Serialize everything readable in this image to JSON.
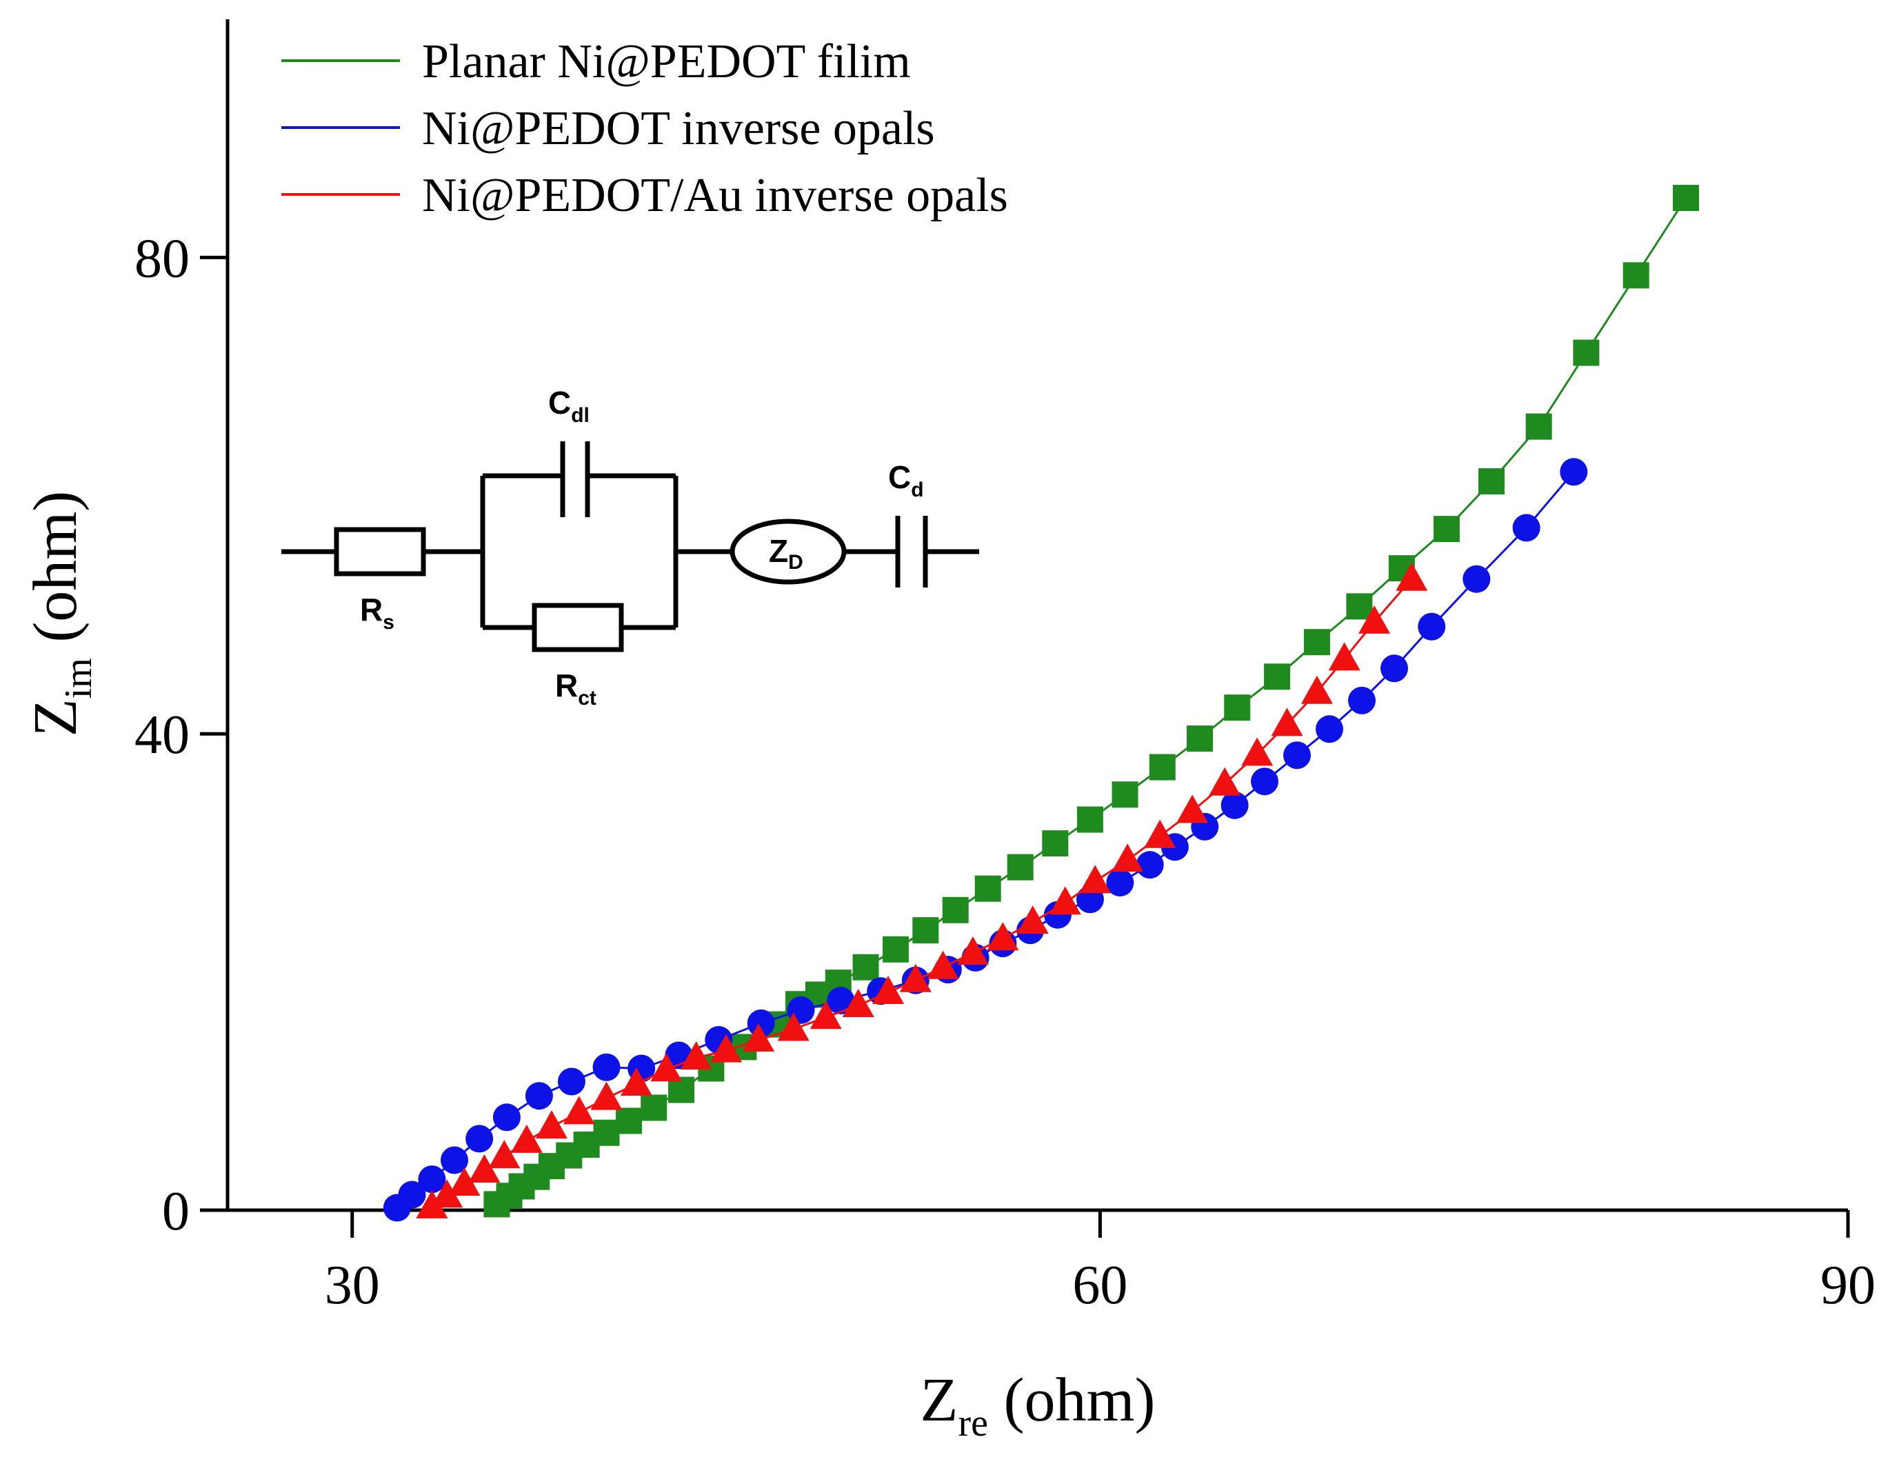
{
  "chart_data": {
    "type": "scatter",
    "title": "",
    "xlabel": {
      "main": "Z",
      "sub": "re",
      "unit": " (ohm)"
    },
    "ylabel": {
      "main": "Z",
      "sub": "im",
      "unit": " (ohm)"
    },
    "xlim": [
      25,
      90
    ],
    "ylim": [
      0,
      100
    ],
    "xticks": [
      30,
      60,
      90
    ],
    "yticks": [
      0,
      40,
      80
    ],
    "grid": false,
    "legend_position": "top-left",
    "series": [
      {
        "name": "Planar Ni@PEDOT filim",
        "color": "#1f8b1f",
        "marker": "square",
        "x": [
          35.8,
          36.3,
          36.8,
          37.4,
          38.0,
          38.7,
          39.4,
          40.2,
          41.1,
          42.1,
          43.2,
          44.4,
          45.7,
          47.1,
          47.9,
          48.7,
          49.5,
          50.6,
          51.8,
          53.0,
          54.2,
          55.5,
          56.8,
          58.2,
          59.6,
          61.0,
          62.5,
          64.0,
          65.5,
          67.1,
          68.7,
          70.4,
          72.1,
          73.9,
          75.7,
          77.6,
          79.5,
          81.5,
          83.5
        ],
        "y": [
          0.5,
          1.2,
          2.0,
          2.8,
          3.7,
          4.6,
          5.5,
          6.5,
          7.5,
          8.6,
          10.1,
          11.9,
          13.7,
          15.6,
          17.3,
          18.1,
          19.1,
          20.4,
          21.9,
          23.5,
          25.2,
          27.0,
          28.8,
          30.8,
          32.8,
          34.9,
          37.2,
          39.6,
          42.2,
          44.8,
          47.7,
          50.7,
          53.9,
          57.2,
          61.2,
          65.8,
          72.0,
          78.5,
          85.0
        ]
      },
      {
        "name": "Ni@PEDOT inverse opals",
        "color": "#0d12e6",
        "marker": "circle",
        "x": [
          31.8,
          32.4,
          33.2,
          34.1,
          35.1,
          36.2,
          37.5,
          38.8,
          40.2,
          41.6,
          43.1,
          44.7,
          46.4,
          48.0,
          49.6,
          51.2,
          52.6,
          53.9,
          55.0,
          56.1,
          57.2,
          58.3,
          59.6,
          60.8,
          62.0,
          63.0,
          64.2,
          65.4,
          66.6,
          67.9,
          69.2,
          70.5,
          71.8,
          73.3,
          75.1,
          77.1,
          79.0
        ],
        "y": [
          0.2,
          1.3,
          2.6,
          4.2,
          6.0,
          7.8,
          9.6,
          10.8,
          12.0,
          11.9,
          13.0,
          14.3,
          15.7,
          16.8,
          17.6,
          18.4,
          19.3,
          20.2,
          21.2,
          22.4,
          23.5,
          24.8,
          26.1,
          27.5,
          29.0,
          30.5,
          32.2,
          34.0,
          36.0,
          38.2,
          40.4,
          42.8,
          45.5,
          49.0,
          53.0,
          57.3,
          62.0
        ]
      },
      {
        "name": "Ni@PEDOT/Au inverse opals",
        "color": "#f01010",
        "marker": "triangle",
        "x": [
          33.2,
          33.8,
          34.5,
          35.3,
          36.1,
          37.0,
          38.0,
          39.1,
          40.2,
          41.4,
          42.6,
          43.8,
          45.0,
          46.3,
          47.7,
          49.0,
          50.3,
          51.5,
          52.6,
          53.7,
          54.9,
          56.1,
          57.3,
          58.6,
          59.8,
          61.1,
          62.4,
          63.7,
          65.0,
          66.3,
          67.5,
          68.7,
          69.8,
          71.0,
          72.5
        ],
        "y": [
          0.3,
          1.2,
          2.2,
          3.3,
          4.5,
          5.8,
          7.0,
          8.2,
          9.4,
          10.6,
          11.8,
          12.8,
          13.4,
          14.3,
          15.2,
          16.2,
          17.2,
          18.3,
          19.3,
          20.4,
          21.6,
          22.8,
          24.2,
          25.8,
          27.6,
          29.4,
          31.4,
          33.5,
          35.8,
          38.3,
          40.8,
          43.5,
          46.3,
          49.4,
          53.0
        ]
      }
    ]
  },
  "circuit": {
    "label_rs": "R",
    "label_rs_sub": "s",
    "label_cdl": "C",
    "label_cdl_sub": "dl",
    "label_rct": "R",
    "label_rct_sub": "ct",
    "label_zd": "Z",
    "label_zd_sub": "D",
    "label_cd": "C",
    "label_cd_sub": "d"
  }
}
